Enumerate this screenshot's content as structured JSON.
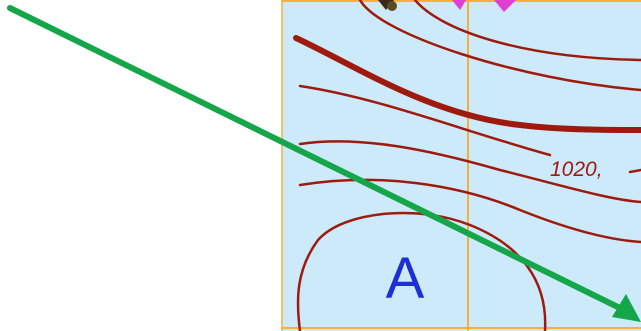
{
  "map": {
    "pressure_label": "1020,",
    "anticyclone_letter": "A",
    "colors": {
      "sea": "#cdeafa",
      "isobar": "#9e1a0e",
      "grid_line": "#f3b13a",
      "arrow": "#16a64a",
      "letter": "#1e2fd4",
      "front_marker": "#e040d0"
    },
    "icons": {
      "arrow": "arrow-icon",
      "front": "front-marker-icon"
    }
  }
}
